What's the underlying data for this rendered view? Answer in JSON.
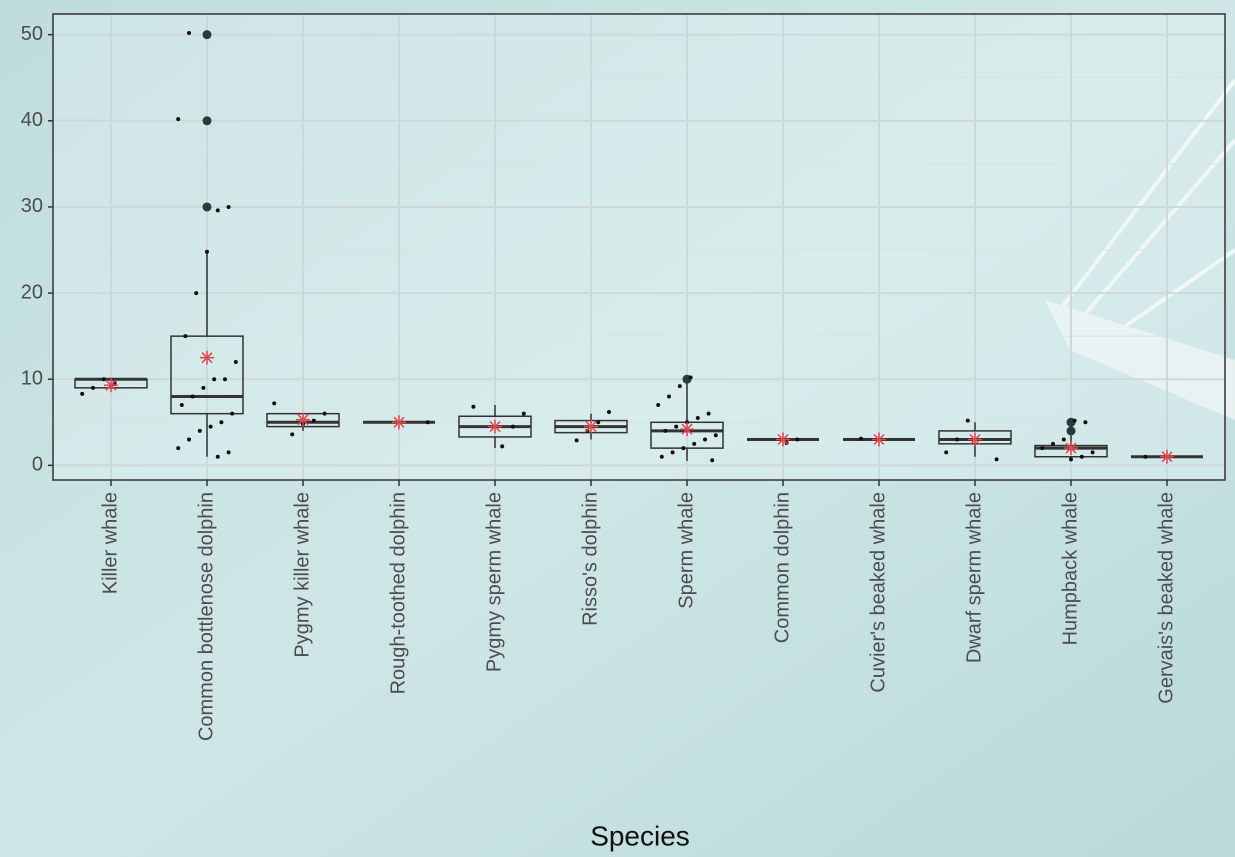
{
  "chart_data": {
    "type": "boxplot",
    "x_label": "Species",
    "categories": [
      "Killer whale",
      "Common bottlenose dolphin",
      "Pygmy killer whale",
      "Rough-toothed dolphin",
      "Pygmy sperm whale",
      "Risso's dolphin",
      "Sperm whale",
      "Common dolphin",
      "Cuvier's beaked whale",
      "Dwarf sperm whale",
      "Humpback whale",
      "Gervais's beaked whale"
    ],
    "boxes": [
      {
        "q1": 9,
        "median": 10,
        "q3": 10,
        "whisker_low": 9,
        "whisker_high": 10,
        "mean": 9.3,
        "outliers": [],
        "points": [
          8.3,
          9,
          10,
          9.6
        ]
      },
      {
        "q1": 6,
        "median": 8,
        "q3": 15,
        "whisker_low": 1,
        "whisker_high": 25,
        "mean": 12.5,
        "outliers": [
          30,
          40,
          50
        ],
        "points": [
          1,
          1.5,
          2,
          3,
          4,
          4.5,
          5,
          6,
          7,
          8,
          9,
          10,
          10,
          12,
          15,
          20,
          24.8,
          29.6,
          30,
          40.2,
          50.2
        ]
      },
      {
        "q1": 4.5,
        "median": 5,
        "q3": 6,
        "whisker_low": 4,
        "whisker_high": 6,
        "mean": 5.3,
        "outliers": [],
        "points": [
          3.6,
          4.8,
          5.2,
          6,
          7.2
        ]
      },
      {
        "q1": 5,
        "median": 5,
        "q3": 5,
        "whisker_low": 5,
        "whisker_high": 5,
        "mean": 5,
        "outliers": [],
        "points": [
          5
        ]
      },
      {
        "q1": 3.3,
        "median": 4.5,
        "q3": 5.7,
        "whisker_low": 2,
        "whisker_high": 7,
        "mean": 4.5,
        "outliers": [],
        "points": [
          2.2,
          4.5,
          6,
          6.8
        ]
      },
      {
        "q1": 3.8,
        "median": 4.5,
        "q3": 5.2,
        "whisker_low": 3,
        "whisker_high": 6,
        "mean": 4.5,
        "outliers": [],
        "points": [
          2.9,
          4,
          5,
          6.2
        ]
      },
      {
        "q1": 2,
        "median": 4,
        "q3": 5,
        "whisker_low": 0.5,
        "whisker_high": 9.5,
        "mean": 4.2,
        "outliers": [
          10
        ],
        "points": [
          0.6,
          1,
          1.5,
          2,
          2.5,
          3,
          3.5,
          4,
          4.5,
          5,
          5.5,
          6,
          7,
          8,
          9.2,
          10.2
        ]
      },
      {
        "q1": 3,
        "median": 3,
        "q3": 3,
        "whisker_low": 3,
        "whisker_high": 3,
        "mean": 3,
        "outliers": [],
        "points": [
          2.6,
          3
        ]
      },
      {
        "q1": 3,
        "median": 3,
        "q3": 3,
        "whisker_low": 3,
        "whisker_high": 3,
        "mean": 3,
        "outliers": [],
        "points": [
          3.1
        ]
      },
      {
        "q1": 2.5,
        "median": 3,
        "q3": 4,
        "whisker_low": 1,
        "whisker_high": 5,
        "mean": 3,
        "outliers": [],
        "points": [
          0.7,
          1.5,
          3,
          5.2
        ]
      },
      {
        "q1": 1,
        "median": 2,
        "q3": 2.3,
        "whisker_low": 0.5,
        "whisker_high": 3.5,
        "mean": 2,
        "outliers": [
          4,
          5
        ],
        "points": [
          0.7,
          1,
          1.5,
          2,
          2.5,
          3,
          5.2,
          5
        ]
      },
      {
        "q1": 1,
        "median": 1,
        "q3": 1,
        "whisker_low": 1,
        "whisker_high": 1,
        "mean": 1,
        "outliers": [],
        "points": [
          1
        ]
      }
    ],
    "box_color": "#333333",
    "mean_color": "#e0474c",
    "point_color": "#111111",
    "ylim": [
      -1.7,
      52.4
    ],
    "yticks": [
      0,
      10,
      20,
      30,
      40,
      50
    ],
    "minor_yticks": [
      5,
      15,
      25,
      35,
      45
    ],
    "grid": true
  }
}
